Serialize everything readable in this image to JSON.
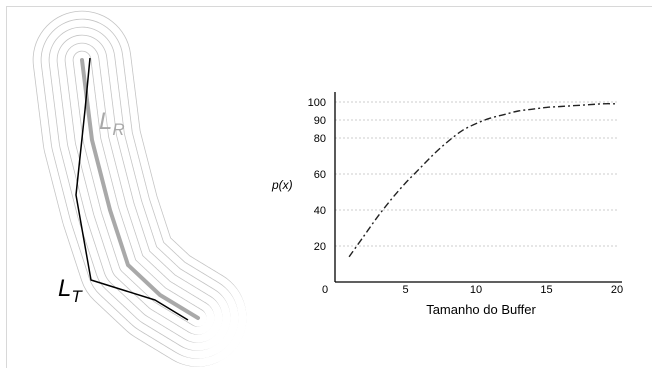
{
  "diagram": {
    "label_lr_main": "L",
    "label_lr_sub": "R",
    "label_lt_main": "L",
    "label_lt_sub": "T"
  },
  "chart_data": {
    "type": "line",
    "ylabel": "p(x)",
    "xlabel": "Tamanho do Buffer",
    "xlim": [
      0,
      20
    ],
    "ylim": [
      0,
      100
    ],
    "xticks": [
      0,
      5,
      10,
      15,
      20
    ],
    "yticks": [
      20,
      40,
      60,
      80,
      90,
      100
    ],
    "grid": "horizontal-dotted",
    "series": [
      {
        "style": "dash-dot",
        "x": [
          1,
          2,
          3,
          4,
          5,
          6,
          7,
          8,
          9,
          10,
          11,
          12,
          13,
          14,
          15,
          16,
          17,
          18,
          19,
          20
        ],
        "y": [
          14,
          25,
          36,
          46,
          55,
          63,
          71,
          78,
          84,
          88,
          91,
          93,
          95,
          96,
          97,
          97.5,
          98,
          98.5,
          99,
          99
        ]
      }
    ]
  },
  "colors": {
    "buffer_rings": "#bdbdbd",
    "line_r": "#a9a9a9",
    "line_t": "#000000",
    "axis": "#000000",
    "grid": "#bdbdbd"
  }
}
